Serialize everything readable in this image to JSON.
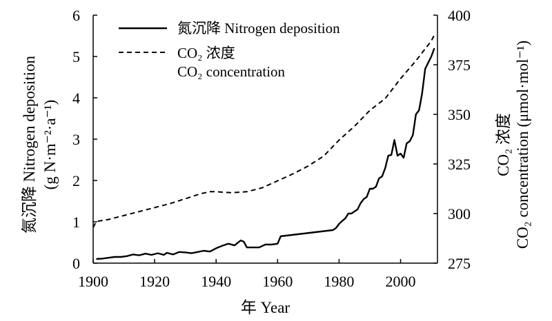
{
  "chart_data": {
    "type": "line",
    "xlabel": "年 Year",
    "ylabel_left": [
      "氮沉降 Nitrogen deposition",
      "(g N·m⁻²·a⁻¹)"
    ],
    "ylabel_right": [
      "CO₂ 浓度",
      "CO₂ concentration (μmol·mol⁻¹)"
    ],
    "x_ticks": [
      1900,
      1920,
      1940,
      1960,
      1980,
      2000
    ],
    "y_left_ticks": [
      0,
      1,
      2,
      3,
      4,
      5,
      6
    ],
    "y_right_ticks": [
      275,
      300,
      325,
      350,
      375,
      400
    ],
    "xlim": [
      1900,
      2012
    ],
    "ylim_left": [
      0,
      6
    ],
    "ylim_right": [
      275,
      400
    ],
    "grid": false,
    "legend_position": "top-left",
    "legend": [
      {
        "label": "氮沉降 Nitrogen deposition",
        "style": "solid"
      },
      {
        "label": "CO₂ 浓度",
        "label2": "CO₂ concentration",
        "style": "dashed"
      }
    ],
    "series": [
      {
        "name": "氮沉降 Nitrogen deposition",
        "axis": "left",
        "style": "solid",
        "x": [
          1901,
          1903,
          1905,
          1907,
          1909,
          1911,
          1913,
          1915,
          1917,
          1919,
          1921,
          1923,
          1924,
          1926,
          1928,
          1930,
          1932,
          1934,
          1936,
          1938,
          1940,
          1942,
          1944,
          1946,
          1948,
          1949,
          1950,
          1952,
          1954,
          1956,
          1958,
          1960,
          1961,
          1978,
          1979,
          1980,
          1981,
          1982,
          1983,
          1984,
          1985,
          1986,
          1987,
          1988,
          1989,
          1990,
          1991,
          1992,
          1993,
          1994,
          1995,
          1996,
          1997,
          1998,
          1999,
          2000,
          2001,
          2002,
          2003,
          2004,
          2005,
          2006,
          2007,
          2008,
          2009,
          2010,
          2011
        ],
        "y": [
          0.1,
          0.11,
          0.13,
          0.15,
          0.15,
          0.17,
          0.21,
          0.19,
          0.23,
          0.2,
          0.24,
          0.2,
          0.25,
          0.21,
          0.27,
          0.26,
          0.24,
          0.27,
          0.3,
          0.28,
          0.36,
          0.42,
          0.47,
          0.43,
          0.55,
          0.52,
          0.38,
          0.38,
          0.38,
          0.45,
          0.45,
          0.47,
          0.65,
          0.8,
          0.85,
          0.95,
          1.02,
          1.08,
          1.2,
          1.2,
          1.25,
          1.3,
          1.45,
          1.55,
          1.6,
          1.8,
          1.8,
          1.85,
          2.05,
          2.1,
          2.3,
          2.6,
          2.62,
          2.98,
          2.6,
          2.65,
          2.55,
          2.9,
          2.95,
          3.1,
          3.6,
          3.7,
          4.1,
          4.7,
          4.85,
          5.0,
          5.2
        ]
      },
      {
        "name": "CO₂ 浓度",
        "axis": "right",
        "style": "dashed",
        "x": [
          1900,
          1901,
          1905,
          1910,
          1915,
          1920,
          1925,
          1930,
          1935,
          1938,
          1940,
          1945,
          1950,
          1955,
          1960,
          1965,
          1970,
          1975,
          1980,
          1985,
          1990,
          1995,
          2000,
          2005,
          2010,
          2011
        ],
        "y": [
          293,
          296,
          297,
          299,
          301,
          303,
          305,
          307.5,
          310,
          311,
          311,
          310.5,
          311,
          313,
          316.5,
          320,
          324,
          329,
          337,
          344,
          352,
          358,
          368,
          377,
          387,
          390
        ]
      }
    ]
  }
}
